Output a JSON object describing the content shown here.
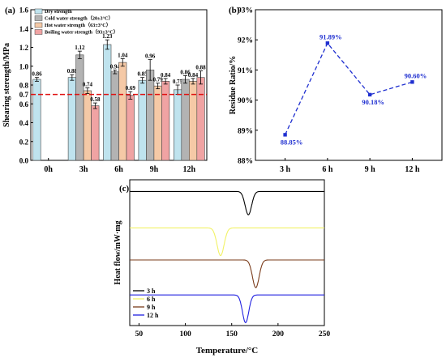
{
  "chart_data": [
    {
      "panel": "(a)",
      "type": "bar",
      "ylabel": "Shearing sterength/MPa",
      "categories": [
        "0h",
        "3h",
        "6h",
        "9h",
        "12h"
      ],
      "ylim": [
        0,
        1.6
      ],
      "yticks": [
        "0.0",
        "0.2",
        "0.4",
        "0.6",
        "0.8",
        "1.0",
        "1.2",
        "1.4",
        "1.6"
      ],
      "reference_line": {
        "value": 0.7,
        "label": "0.7"
      },
      "series": [
        {
          "name": "Dry strength",
          "color": "#bfe3ee",
          "values": [
            0.86,
            0.88,
            1.23,
            0.85,
            0.75
          ],
          "errors": [
            0.02,
            0.03,
            0.05,
            0.03,
            0.05
          ],
          "labels": [
            "0.86",
            "0.88",
            "1.23",
            "0.85",
            "0.75"
          ]
        },
        {
          "name": "Cold water strength（20±3°C）",
          "color": "#b3b3b3",
          "values": [
            null,
            1.12,
            0.94,
            0.96,
            0.86
          ],
          "errors": [
            null,
            0.04,
            0.02,
            0.11,
            0.04
          ],
          "labels": [
            "",
            "1.12",
            "0.94",
            "0.96",
            "0.86"
          ]
        },
        {
          "name": "Hot water strength（63±3°C）",
          "color": "#f5c9a6",
          "values": [
            null,
            0.74,
            1.04,
            0.79,
            0.84
          ],
          "errors": [
            null,
            0.03,
            0.04,
            0.03,
            0.03
          ],
          "labels": [
            "",
            "0.74",
            "1.04",
            "0.79",
            "0.84"
          ]
        },
        {
          "name": "Boiling water strength（93±3°C）",
          "color": "#f0a3a3",
          "values": [
            null,
            0.58,
            0.69,
            0.84,
            0.88
          ],
          "errors": [
            null,
            0.03,
            0.04,
            0.03,
            0.07
          ],
          "labels": [
            "",
            "0.58",
            "0.69",
            "0.84",
            "0.88"
          ]
        }
      ]
    },
    {
      "panel": "(b)",
      "type": "line",
      "ylabel": "Residue Ratio/%",
      "x": [
        "3 h",
        "6 h",
        "9 h",
        "12 h"
      ],
      "y": [
        88.85,
        91.89,
        90.18,
        90.6
      ],
      "point_labels": [
        "88.85%",
        "91.89%",
        "90.18%",
        "90.60%"
      ],
      "ylim": [
        88,
        93
      ],
      "yticks": [
        "88%",
        "89%",
        "90%",
        "91%",
        "92%",
        "93%"
      ],
      "color": "#1f2fd0"
    },
    {
      "panel": "(c)",
      "type": "line",
      "xlabel": "Temperature/°C",
      "ylabel": "Heat flow/mW·mg",
      "xlim": [
        40,
        250
      ],
      "xticks": [
        "50",
        "100",
        "150",
        "200",
        "250"
      ],
      "series": [
        {
          "name": "3 h",
          "color": "#000000",
          "baseline": 0.92,
          "peak_x": 168,
          "peak_depth": 0.16,
          "peak_width": 3.5
        },
        {
          "name": "6 h",
          "color": "#f2f266",
          "baseline": 0.67,
          "peak_x": 138,
          "peak_depth": 0.19,
          "peak_width": 3.8
        },
        {
          "name": "9 h",
          "color": "#7a3b1a",
          "baseline": 0.45,
          "peak_x": 176,
          "peak_depth": 0.19,
          "peak_width": 3.6
        },
        {
          "name": "12 h",
          "color": "#2020e0",
          "baseline": 0.21,
          "peak_x": 165,
          "peak_depth": 0.19,
          "peak_width": 3.4
        }
      ]
    }
  ]
}
